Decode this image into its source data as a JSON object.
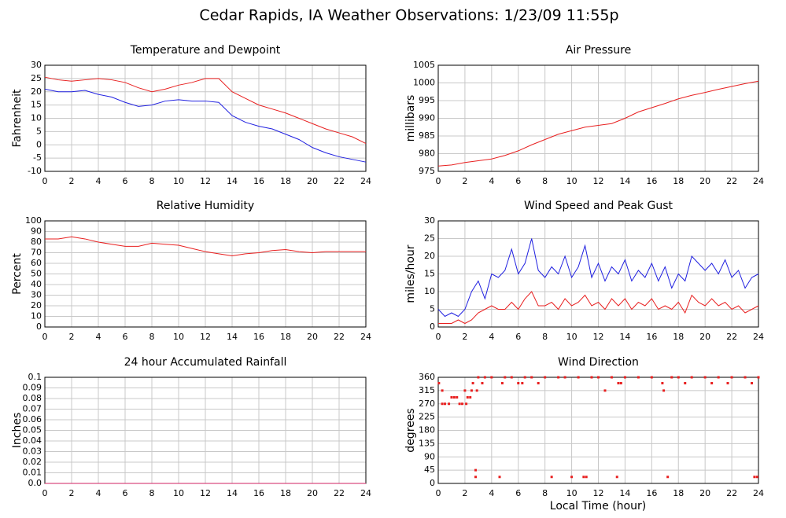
{
  "title": "Cedar Rapids, IA Weather Observations: 1/23/09 11:55p",
  "x_axis_label": "Local Time (hour)",
  "chart_data": [
    {
      "type": "line",
      "title": "Temperature and Dewpoint",
      "y_label": "Fahrenheit",
      "x": [
        0,
        1,
        2,
        3,
        4,
        5,
        6,
        7,
        8,
        9,
        10,
        11,
        12,
        13,
        14,
        15,
        16,
        17,
        18,
        19,
        20,
        21,
        22,
        23,
        24
      ],
      "series": [
        {
          "color": "#e82020",
          "values": [
            25.5,
            24.5,
            24,
            24.5,
            25,
            24.5,
            23.5,
            21.5,
            20,
            21,
            22.5,
            23.5,
            25,
            25,
            20,
            17.5,
            15,
            13.5,
            12,
            10,
            8,
            6,
            4.5,
            3,
            0.5
          ]
        },
        {
          "color": "#2020e0",
          "values": [
            21,
            20,
            20,
            20.5,
            19,
            18,
            16,
            14.5,
            15,
            16.5,
            17,
            16.5,
            16.5,
            16,
            11,
            8.5,
            7,
            6,
            4,
            2,
            -1,
            -3,
            -4.5,
            -5.5,
            -6.5
          ]
        }
      ],
      "xlim": [
        0,
        24
      ],
      "xticks": [
        0,
        2,
        4,
        6,
        8,
        10,
        12,
        14,
        16,
        18,
        20,
        22,
        24
      ],
      "ylim": [
        -10,
        30
      ],
      "yticks": [
        -10,
        -5,
        0,
        5,
        10,
        15,
        20,
        25,
        30
      ],
      "grid": true
    },
    {
      "type": "line",
      "title": "Air Pressure",
      "y_label": "millibars",
      "x": [
        0,
        1,
        2,
        3,
        4,
        5,
        6,
        7,
        8,
        9,
        10,
        11,
        12,
        13,
        14,
        15,
        16,
        17,
        18,
        19,
        20,
        21,
        22,
        23,
        24
      ],
      "series": [
        {
          "color": "#e82020",
          "values": [
            976.5,
            976.8,
            977.5,
            978,
            978.5,
            979.5,
            980.8,
            982.5,
            984,
            985.5,
            986.5,
            987.5,
            988,
            988.5,
            990,
            991.8,
            993,
            994.2,
            995.5,
            996.5,
            997.3,
            998.2,
            999,
            999.8,
            1000.5
          ]
        }
      ],
      "xlim": [
        0,
        24
      ],
      "xticks": [
        0,
        2,
        4,
        6,
        8,
        10,
        12,
        14,
        16,
        18,
        20,
        22,
        24
      ],
      "ylim": [
        975,
        1005
      ],
      "yticks": [
        975,
        980,
        985,
        990,
        995,
        1000,
        1005
      ],
      "grid": true
    },
    {
      "type": "line",
      "title": "Relative Humidity",
      "y_label": "Percent",
      "x": [
        0,
        1,
        2,
        3,
        4,
        5,
        6,
        7,
        8,
        9,
        10,
        11,
        12,
        13,
        14,
        15,
        16,
        17,
        18,
        19,
        20,
        21,
        22,
        23,
        24
      ],
      "series": [
        {
          "color": "#e82020",
          "values": [
            83,
            83,
            85,
            83,
            80,
            78,
            76,
            76,
            79,
            78,
            77,
            74,
            71,
            69,
            67,
            69,
            70,
            72,
            73,
            71,
            70,
            71,
            71,
            71,
            71
          ]
        }
      ],
      "xlim": [
        0,
        24
      ],
      "xticks": [
        0,
        2,
        4,
        6,
        8,
        10,
        12,
        14,
        16,
        18,
        20,
        22,
        24
      ],
      "ylim": [
        0,
        100
      ],
      "yticks": [
        0,
        10,
        20,
        30,
        40,
        50,
        60,
        70,
        80,
        90,
        100
      ],
      "grid": true
    },
    {
      "type": "line",
      "title": "Wind Speed and Peak Gust",
      "y_label": "miles/hour",
      "x": [
        0,
        0.5,
        1,
        1.5,
        2,
        2.5,
        3,
        3.5,
        4,
        4.5,
        5,
        5.5,
        6,
        6.5,
        7,
        7.5,
        8,
        8.5,
        9,
        9.5,
        10,
        10.5,
        11,
        11.5,
        12,
        12.5,
        13,
        13.5,
        14,
        14.5,
        15,
        15.5,
        16,
        16.5,
        17,
        17.5,
        18,
        18.5,
        19,
        19.5,
        20,
        20.5,
        21,
        21.5,
        22,
        22.5,
        23,
        23.5,
        24
      ],
      "series": [
        {
          "color": "#2020e0",
          "values": [
            5,
            3,
            4,
            3,
            5,
            10,
            13,
            8,
            15,
            14,
            16,
            22,
            15,
            18,
            25,
            16,
            14,
            17,
            15,
            20,
            14,
            17,
            23,
            14,
            18,
            13,
            17,
            15,
            19,
            13,
            16,
            14,
            18,
            13,
            17,
            11,
            15,
            13,
            20,
            18,
            16,
            18,
            15,
            19,
            14,
            16,
            11,
            14,
            15
          ]
        },
        {
          "color": "#e82020",
          "values": [
            1,
            1,
            1,
            2,
            1,
            2,
            4,
            5,
            6,
            5,
            5,
            7,
            5,
            8,
            10,
            6,
            6,
            7,
            5,
            8,
            6,
            7,
            9,
            6,
            7,
            5,
            8,
            6,
            8,
            5,
            7,
            6,
            8,
            5,
            6,
            5,
            7,
            4,
            9,
            7,
            6,
            8,
            6,
            7,
            5,
            6,
            4,
            5,
            6
          ]
        }
      ],
      "xlim": [
        0,
        24
      ],
      "xticks": [
        0,
        2,
        4,
        6,
        8,
        10,
        12,
        14,
        16,
        18,
        20,
        22,
        24
      ],
      "ylim": [
        0,
        30
      ],
      "yticks": [
        0,
        5,
        10,
        15,
        20,
        25,
        30
      ],
      "grid": true
    },
    {
      "type": "line",
      "title": "24 hour Accumulated Rainfall",
      "y_label": "Inches",
      "x": [
        0,
        24
      ],
      "series": [
        {
          "color": "#d02060",
          "values": [
            0,
            0
          ]
        }
      ],
      "xlim": [
        0,
        24
      ],
      "xticks": [
        0,
        2,
        4,
        6,
        8,
        10,
        12,
        14,
        16,
        18,
        20,
        22,
        24
      ],
      "ylim": [
        0,
        0.1
      ],
      "yticks": [
        {
          "value": 0,
          "label": "0.0"
        },
        0.01,
        0.02,
        0.03,
        0.04,
        0.05,
        0.06,
        0.07,
        0.08,
        0.09,
        0.1
      ],
      "grid": true
    },
    {
      "type": "scatter",
      "title": "Wind Direction",
      "y_label": "degrees",
      "x": [
        0.05,
        0.3,
        0.3,
        0.5,
        0.8,
        1.0,
        1.2,
        1.4,
        1.6,
        1.8,
        2.0,
        2.1,
        2.2,
        2.4,
        2.5,
        2.6,
        2.8,
        2.8,
        2.9,
        3.0,
        3.3,
        3.5,
        4.0,
        4.6,
        4.8,
        5.0,
        5.5,
        6.0,
        6.3,
        6.5,
        7.0,
        7.5,
        8.0,
        8.5,
        9.0,
        9.5,
        10.0,
        10.5,
        10.9,
        11.1,
        11.5,
        12.0,
        12.5,
        13.0,
        13.4,
        13.5,
        13.7,
        14,
        15,
        16,
        16.8,
        16.9,
        17.2,
        17.5,
        18,
        18.5,
        19,
        20,
        20.5,
        21,
        21.7,
        22,
        23,
        23.5,
        23.7,
        23.9,
        24
      ],
      "values": [
        340,
        315,
        270,
        270,
        270,
        292,
        292,
        292,
        270,
        270,
        315,
        270,
        292,
        292,
        315,
        340,
        45,
        22,
        315,
        360,
        340,
        360,
        360,
        22,
        340,
        360,
        360,
        340,
        340,
        360,
        360,
        340,
        360,
        22,
        360,
        360,
        22,
        360,
        22,
        22,
        360,
        360,
        315,
        360,
        22,
        340,
        340,
        360,
        360,
        360,
        340,
        315,
        22,
        360,
        360,
        340,
        360,
        360,
        340,
        360,
        340,
        360,
        360,
        340,
        22,
        22,
        360
      ],
      "color": "#e82020",
      "xlim": [
        0,
        24
      ],
      "xticks": [
        0,
        2,
        4,
        6,
        8,
        10,
        12,
        14,
        16,
        18,
        20,
        22,
        24
      ],
      "ylim": [
        0,
        360
      ],
      "yticks": [
        0,
        45,
        90,
        135,
        180,
        225,
        270,
        315,
        360
      ],
      "grid": true
    }
  ]
}
